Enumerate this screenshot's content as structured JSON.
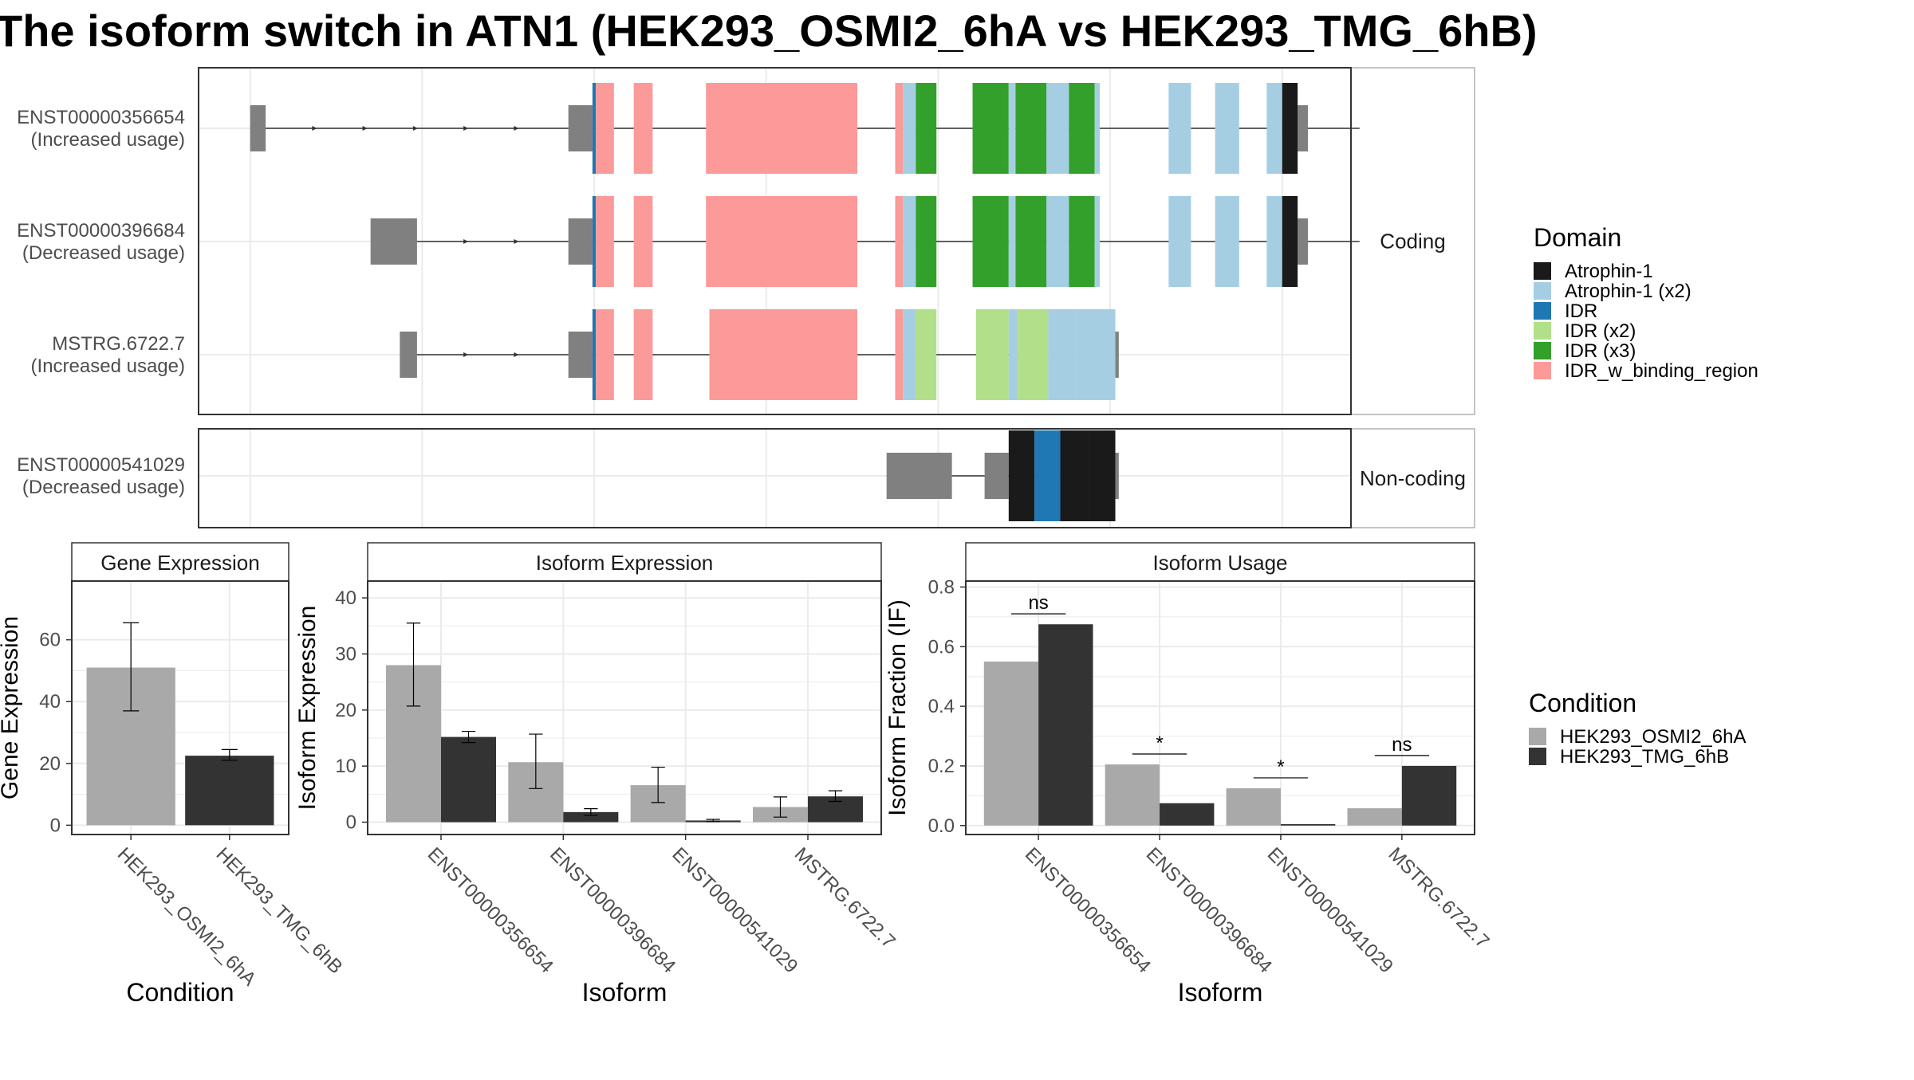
{
  "title": "The isoform switch in ATN1 (HEK293_OSMI2_6hA vs HEK293_TMG_6hB)",
  "colors": {
    "intron": "#333333",
    "utr": "#808080",
    "panel_border": "#333333",
    "strip_fill": "#ffffff",
    "grid": "#ebebeb",
    "condition_a": "#a9a9a9",
    "condition_b": "#333333"
  },
  "transcript_panel": {
    "facets": [
      {
        "label": "Coding",
        "rows": [
          0,
          1,
          2
        ]
      },
      {
        "label": "Non-coding",
        "rows": [
          3
        ]
      }
    ],
    "x_breaks": [
      -6200,
      -5200,
      -4200,
      -3200,
      -2200,
      -1200,
      -200
    ],
    "x_lim": [
      -6500,
      200
    ],
    "rows": [
      {
        "id": "ENST00000356654",
        "usage": "(Increased usage)",
        "utr": [
          [
            -6200,
            -6110
          ],
          [
            -4350,
            -4210
          ],
          [
            -110,
            250
          ]
        ],
        "cds": [
          [
            -4210,
            -4190
          ],
          [
            -4190,
            -4085
          ],
          [
            -3970,
            -3860
          ],
          [
            -3550,
            -2670
          ],
          [
            -2450,
            -2405
          ],
          [
            -2405,
            -2330
          ],
          [
            -2330,
            -2210
          ],
          [
            -2000,
            -1790
          ],
          [
            -1790,
            -1750
          ],
          [
            -1750,
            -1570
          ],
          [
            -1570,
            -1440
          ],
          [
            -1440,
            -1290
          ],
          [
            -1290,
            -1260
          ],
          [
            -860,
            -730
          ],
          [
            -590,
            -450
          ],
          [
            -290,
            -200
          ],
          [
            -200,
            -110
          ]
        ],
        "cds_domains": [
          "IDR",
          "IDR_w_binding_region",
          "IDR_w_binding_region",
          "IDR_w_binding_region",
          "IDR_w_binding_region",
          "Atrophin-1 (x2)",
          "IDR (x3)",
          "IDR (x3)",
          "Atrophin-1 (x2)",
          "IDR (x3)",
          "Atrophin-1 (x2)",
          "IDR (x3)",
          "Atrophin-1 (x2)",
          "Atrophin-1 (x2)",
          "Atrophin-1 (x2)",
          "Atrophin-1 (x2)",
          "Atrophin-1"
        ]
      },
      {
        "id": "ENST00000396684",
        "usage": "(Decreased usage)",
        "utr": [
          [
            -5500,
            -5230
          ],
          [
            -4350,
            -4210
          ],
          [
            -110,
            250
          ]
        ],
        "cds": [
          [
            -4210,
            -4190
          ],
          [
            -4190,
            -4085
          ],
          [
            -3970,
            -3860
          ],
          [
            -3550,
            -2670
          ],
          [
            -2450,
            -2405
          ],
          [
            -2405,
            -2330
          ],
          [
            -2330,
            -2210
          ],
          [
            -2000,
            -1790
          ],
          [
            -1790,
            -1750
          ],
          [
            -1750,
            -1570
          ],
          [
            -1570,
            -1440
          ],
          [
            -1440,
            -1290
          ],
          [
            -1290,
            -1260
          ],
          [
            -860,
            -730
          ],
          [
            -590,
            -450
          ],
          [
            -290,
            -200
          ],
          [
            -200,
            -110
          ]
        ],
        "cds_domains": [
          "IDR",
          "IDR_w_binding_region",
          "IDR_w_binding_region",
          "IDR_w_binding_region",
          "IDR_w_binding_region",
          "Atrophin-1 (x2)",
          "IDR (x3)",
          "IDR (x3)",
          "Atrophin-1 (x2)",
          "IDR (x3)",
          "Atrophin-1 (x2)",
          "IDR (x3)",
          "Atrophin-1 (x2)",
          "Atrophin-1 (x2)",
          "Atrophin-1 (x2)",
          "Atrophin-1 (x2)",
          "Atrophin-1"
        ]
      },
      {
        "id": "MSTRG.6722.7",
        "usage": "(Increased usage)",
        "utr": [
          [
            -5330,
            -5230
          ],
          [
            -4350,
            -4210
          ],
          [
            -1170,
            -1150
          ]
        ],
        "cds": [
          [
            -4210,
            -4190
          ],
          [
            -4190,
            -4085
          ],
          [
            -3970,
            -3860
          ],
          [
            -3530,
            -2670
          ],
          [
            -2450,
            -2405
          ],
          [
            -2405,
            -2330
          ],
          [
            -2330,
            -2210
          ],
          [
            -1980,
            -1790
          ],
          [
            -1790,
            -1740
          ],
          [
            -1740,
            -1560
          ],
          [
            -1560,
            -1400
          ],
          [
            -1400,
            -1170
          ]
        ],
        "cds_domains": [
          "IDR",
          "IDR_w_binding_region",
          "IDR_w_binding_region",
          "IDR_w_binding_region",
          "IDR_w_binding_region",
          "Atrophin-1 (x2)",
          "IDR (x2)",
          "IDR (x2)",
          "Atrophin-1 (x2)",
          "IDR (x2)",
          "Atrophin-1 (x2)",
          "Atrophin-1 (x2)"
        ]
      },
      {
        "id": "ENST00000541029",
        "usage": "(Decreased usage)",
        "utr": [
          [
            -2500,
            -2120
          ],
          [
            -1930,
            -1790
          ],
          [
            -1170,
            -1150
          ]
        ],
        "cds": [
          [
            -1790,
            -1640
          ],
          [
            -1640,
            -1490
          ],
          [
            -1490,
            -1330
          ],
          [
            -1330,
            -1170
          ]
        ],
        "cds_domains": [
          "Atrophin-1",
          "IDR",
          "Atrophin-1",
          "Atrophin-1"
        ]
      }
    ]
  },
  "legend_domain": {
    "title": "Domain",
    "items": [
      {
        "label": "Atrophin-1",
        "color": "#1a1a1a"
      },
      {
        "label": "Atrophin-1 (x2)",
        "color": "#a6cee3"
      },
      {
        "label": "IDR",
        "color": "#1f78b4"
      },
      {
        "label": "IDR (x2)",
        "color": "#b2df8a"
      },
      {
        "label": "IDR (x3)",
        "color": "#33a02c"
      },
      {
        "label": "IDR_w_binding_region",
        "color": "#fb9a99"
      }
    ]
  },
  "legend_condition": {
    "title": "Condition",
    "items": [
      {
        "label": "HEK293_OSMI2_6hA",
        "color": "#a9a9a9"
      },
      {
        "label": "HEK293_TMG_6hB",
        "color": "#333333"
      }
    ]
  },
  "chart_data": [
    {
      "type": "bar",
      "title": "Gene Expression",
      "xlabel": "Condition",
      "ylabel": "Gene Expression",
      "categories": [
        "HEK293_OSMI2_6hA",
        "HEK293_TMG_6hB"
      ],
      "values": [
        51,
        22.5
      ],
      "errors": [
        [
          37,
          65.5
        ],
        [
          21,
          24.5
        ]
      ],
      "ylim": [
        -3,
        79
      ],
      "yticks": [
        0,
        20,
        40,
        60
      ]
    },
    {
      "type": "bar",
      "title": "Isoform Expression",
      "xlabel": "Isoform",
      "ylabel": "Isoform Expression",
      "categories": [
        "ENST00000356654",
        "ENST00000396684",
        "ENST00000541029",
        "MSTRG.6722.7"
      ],
      "series": [
        {
          "name": "HEK293_OSMI2_6hA",
          "values": [
            28,
            10.7,
            6.6,
            2.7
          ],
          "errors": [
            [
              20.7,
              35.5
            ],
            [
              6,
              15.7
            ],
            [
              3.5,
              9.8
            ],
            [
              0.9,
              4.5
            ]
          ]
        },
        {
          "name": "HEK293_TMG_6hB",
          "values": [
            15.2,
            1.8,
            0.3,
            4.6
          ],
          "errors": [
            [
              14.2,
              16.2
            ],
            [
              1.2,
              2.4
            ],
            [
              0.1,
              0.5
            ],
            [
              3.7,
              5.6
            ]
          ]
        }
      ],
      "ylim": [
        -2.2,
        43
      ],
      "yticks": [
        0,
        10,
        20,
        30,
        40
      ]
    },
    {
      "type": "bar",
      "title": "Isoform Usage",
      "xlabel": "Isoform",
      "ylabel": "Isoform Fraction (IF)",
      "categories": [
        "ENST00000356654",
        "ENST00000396684",
        "ENST00000541029",
        "MSTRG.6722.7"
      ],
      "series": [
        {
          "name": "HEK293_OSMI2_6hA",
          "values": [
            0.55,
            0.205,
            0.125,
            0.058
          ]
        },
        {
          "name": "HEK293_TMG_6hB",
          "values": [
            0.675,
            0.075,
            0.005,
            0.2
          ]
        }
      ],
      "significance": [
        "ns",
        "*",
        "*",
        "ns"
      ],
      "ylim": [
        -0.03,
        0.82
      ],
      "yticks": [
        "0.0",
        "0.2",
        "0.4",
        "0.6",
        "0.8"
      ]
    }
  ]
}
